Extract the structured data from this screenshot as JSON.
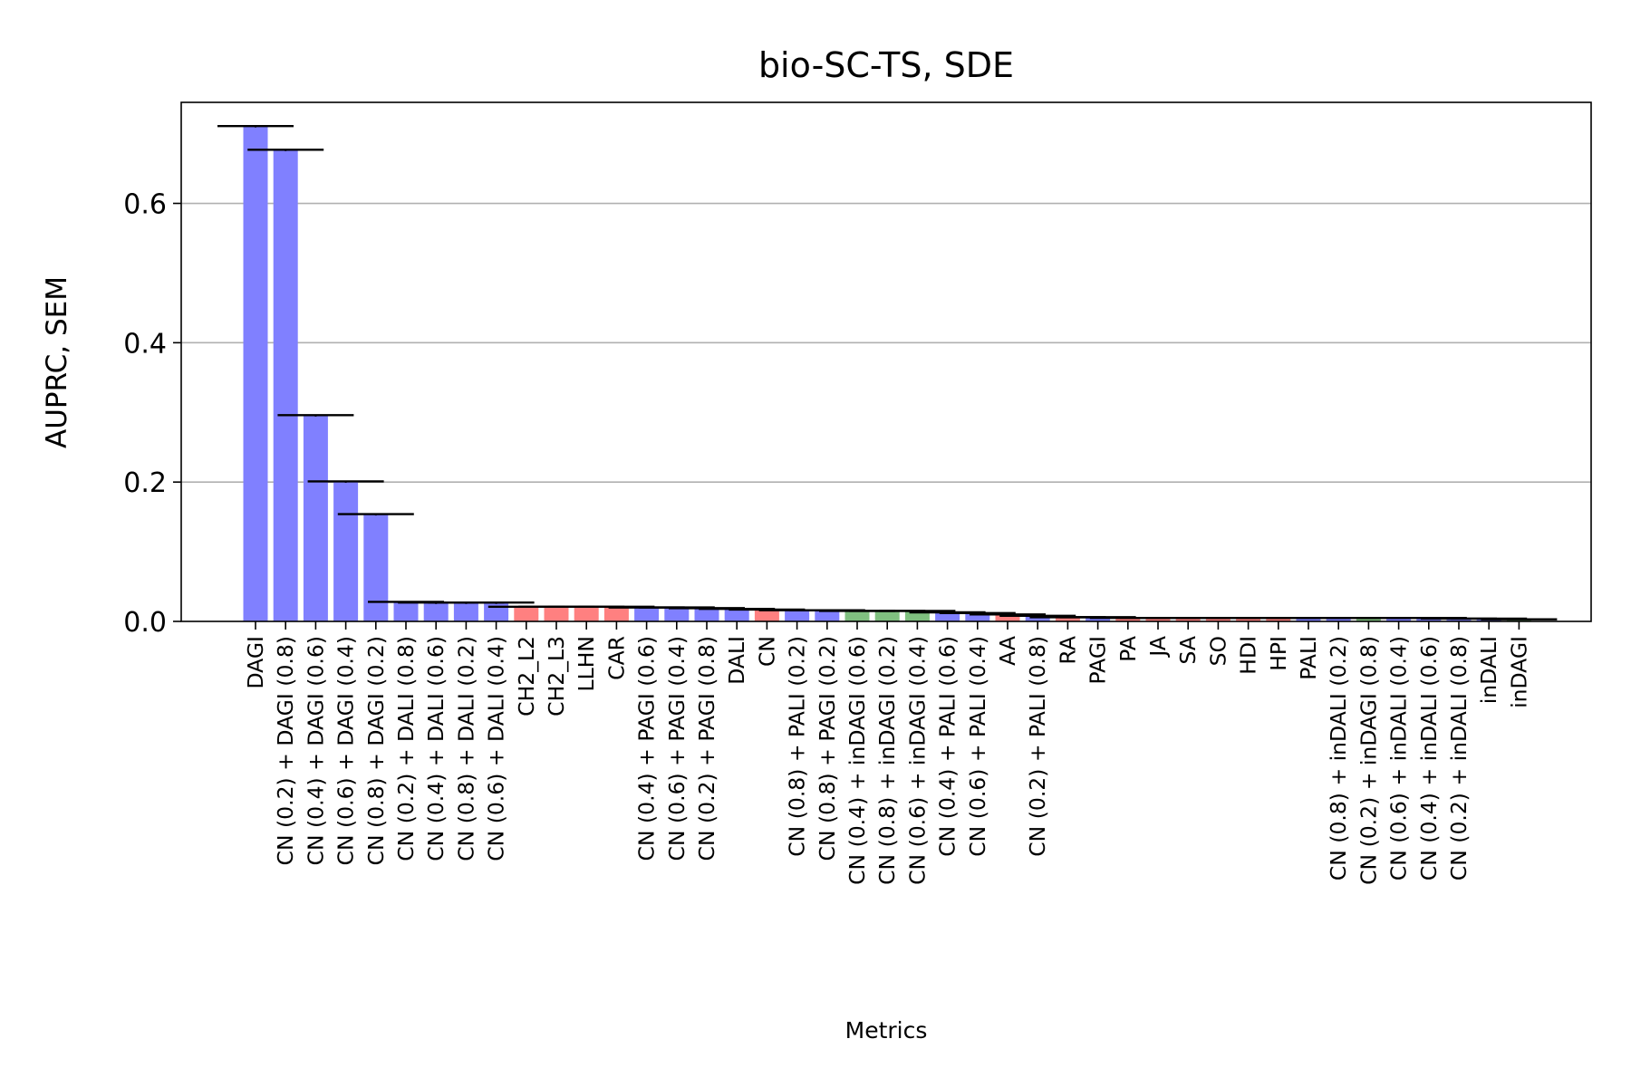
{
  "chart_data": {
    "type": "bar",
    "title": "bio-SC-TS, SDE",
    "xlabel": "Metrics",
    "ylabel": "AUPRC, SEM",
    "ylim": [
      0,
      0.745
    ],
    "yticks": [
      0.0,
      0.2,
      0.4,
      0.6
    ],
    "ytick_labels": [
      "0.0",
      "0.2",
      "0.4",
      "0.6"
    ],
    "grid": "y",
    "colors": {
      "blue": "#8080ff",
      "red": "#ff8080",
      "green": "#80c080",
      "errbar": "#000000",
      "grid": "#b0b0b0"
    },
    "categories": [
      "DAGI",
      "CN (0.2) + DAGI (0.8)",
      "CN (0.4) + DAGI (0.6)",
      "CN (0.6) + DAGI (0.4)",
      "CN (0.8) + DAGI (0.2)",
      "CN (0.2) + DALI (0.8)",
      "CN (0.4) + DALI (0.6)",
      "CN (0.8) + DALI (0.2)",
      "CN (0.6) + DALI (0.4)",
      "CH2_L2",
      "CH2_L3",
      "LLHN",
      "CAR",
      "CN (0.4) + PAGI (0.6)",
      "CN (0.6) + PAGI (0.4)",
      "CN (0.2) + PAGI (0.8)",
      "DALI",
      "CN",
      "CN (0.8) + PALI (0.2)",
      "CN (0.8) + PAGI (0.2)",
      "CN (0.4) + inDAGI (0.6)",
      "CN (0.8) + inDAGI (0.2)",
      "CN (0.6) + inDAGI (0.4)",
      "CN (0.4) + PALI (0.6)",
      "CN (0.6) + PALI (0.4)",
      "AA",
      "CN (0.2) + PALI (0.8)",
      "RA",
      "PAGI",
      "PA",
      "JA",
      "SA",
      "SO",
      "HDI",
      "HPI",
      "PALI",
      "CN (0.8) + inDALI (0.2)",
      "CN (0.2) + inDAGI (0.8)",
      "CN (0.6) + inDALI (0.4)",
      "CN (0.4) + inDALI (0.6)",
      "CN (0.2) + inDALI (0.8)",
      "inDALI",
      "inDAGI"
    ],
    "tick_labels": [
      [
        "DAGI"
      ],
      [
        "CN (0.2) + DAGI (0.8)"
      ],
      [
        "CN (0.4) + DAGI (0.6)"
      ],
      [
        "CN (0.6) + DAGI (0.4)"
      ],
      [
        "CN (0.8) + DAGI (0.2)"
      ],
      [
        "CN (0.2) + DALI (0.8)"
      ],
      [
        "CN (0.4) + DALI (0.6)"
      ],
      [
        "CN (0.8) + DALI (0.2)"
      ],
      [
        "CN (0.6) + DALI (0.4)"
      ],
      [
        "CH2_L2"
      ],
      [
        "CH2_L3"
      ],
      [
        "LLHN"
      ],
      [
        "CAR"
      ],
      [
        "CN (0.4) + PAGI (0.6)"
      ],
      [
        "CN (0.6) + PAGI (0.4)"
      ],
      [
        "CN (0.2) + PAGI (0.8)"
      ],
      [
        "DALI"
      ],
      [
        "CN"
      ],
      [
        "CN (0.8) + PALI (0.2)"
      ],
      [
        "CN (0.8) + PAGI (0.2)"
      ],
      [
        "CN (0.4) + inDAGI (0.6)"
      ],
      [
        "CN (0.8) + inDAGI (0.2)"
      ],
      [
        "CN (0.6) + inDAGI (0.4)"
      ],
      [
        "CN (0.4) + PALI (0.6)"
      ],
      [
        "CN (0.6) + PALI (0.4)"
      ],
      [
        "AA"
      ],
      [
        "CN (0.2) + PALI (0.8)"
      ],
      [
        "RA"
      ],
      [
        "PAGI"
      ],
      [
        "PA"
      ],
      [
        "JA"
      ],
      [
        "SA"
      ],
      [
        "SO"
      ],
      [
        "HDI"
      ],
      [
        "HPI"
      ],
      [
        "PALI"
      ],
      [
        "CN (0.8) + inDALI (0.2)"
      ],
      [
        "CN (0.2) + inDAGI (0.8)"
      ],
      [
        "CN (0.6) + inDALI (0.4)"
      ],
      [
        "CN (0.4) + inDALI (0.6)"
      ],
      [
        "CN (0.2) + inDALI (0.8)"
      ],
      [
        "inDALI"
      ],
      [
        "inDAGI"
      ]
    ],
    "bar_colors": [
      "blue",
      "blue",
      "blue",
      "blue",
      "blue",
      "blue",
      "blue",
      "blue",
      "blue",
      "red",
      "red",
      "red",
      "red",
      "blue",
      "blue",
      "blue",
      "blue",
      "red",
      "blue",
      "blue",
      "green",
      "green",
      "green",
      "blue",
      "blue",
      "red",
      "blue",
      "red",
      "blue",
      "red",
      "red",
      "red",
      "red",
      "red",
      "red",
      "blue",
      "blue",
      "green",
      "blue",
      "blue",
      "blue",
      "blue",
      "green"
    ],
    "values": [
      0.71,
      0.676,
      0.295,
      0.2,
      0.153,
      0.027,
      0.026,
      0.026,
      0.026,
      0.021,
      0.021,
      0.021,
      0.021,
      0.02,
      0.02,
      0.018,
      0.018,
      0.017,
      0.016,
      0.016,
      0.015,
      0.015,
      0.015,
      0.013,
      0.012,
      0.01,
      0.008,
      0.006,
      0.006,
      0.005,
      0.005,
      0.005,
      0.005,
      0.005,
      0.005,
      0.005,
      0.005,
      0.005,
      0.005,
      0.005,
      0.004,
      0.004,
      0.003
    ],
    "errors": [
      0.001,
      0.001,
      0.001,
      0.001,
      0.001,
      0.001,
      0.001,
      0.001,
      0.001,
      0.0,
      0.0,
      0.0,
      0.0,
      0.0,
      0.0,
      0.001,
      0.0,
      0.0,
      0.0,
      0.0,
      0.0,
      0.0,
      0.0,
      0.0,
      0.0,
      0.0,
      0.0,
      0.0,
      0.0,
      0.0,
      0.0,
      0.0,
      0.0,
      0.0,
      0.0,
      0.0,
      0.0,
      0.0,
      0.0,
      0.0,
      0.0,
      0.0,
      0.0
    ]
  }
}
